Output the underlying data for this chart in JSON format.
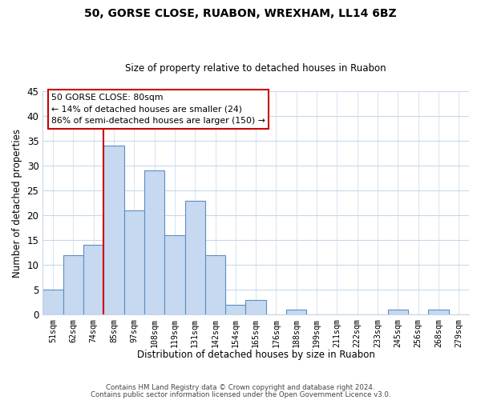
{
  "title": "50, GORSE CLOSE, RUABON, WREXHAM, LL14 6BZ",
  "subtitle": "Size of property relative to detached houses in Ruabon",
  "xlabel": "Distribution of detached houses by size in Ruabon",
  "ylabel": "Number of detached properties",
  "bar_labels": [
    "51sqm",
    "62sqm",
    "74sqm",
    "85sqm",
    "97sqm",
    "108sqm",
    "119sqm",
    "131sqm",
    "142sqm",
    "154sqm",
    "165sqm",
    "176sqm",
    "188sqm",
    "199sqm",
    "211sqm",
    "222sqm",
    "233sqm",
    "245sqm",
    "256sqm",
    "268sqm",
    "279sqm"
  ],
  "bar_values": [
    5,
    12,
    14,
    34,
    21,
    29,
    16,
    23,
    12,
    2,
    3,
    0,
    1,
    0,
    0,
    0,
    0,
    1,
    0,
    1,
    0
  ],
  "bar_color": "#c6d9f0",
  "bar_edge_color": "#5a8fc2",
  "vline_x": 3.0,
  "vline_color": "#cc0000",
  "ylim": [
    0,
    45
  ],
  "yticks": [
    0,
    5,
    10,
    15,
    20,
    25,
    30,
    35,
    40,
    45
  ],
  "annotation_title": "50 GORSE CLOSE: 80sqm",
  "annotation_line1": "← 14% of detached houses are smaller (24)",
  "annotation_line2": "86% of semi-detached houses are larger (150) →",
  "footer_line1": "Contains HM Land Registry data © Crown copyright and database right 2024.",
  "footer_line2": "Contains public sector information licensed under the Open Government Licence v3.0.",
  "background_color": "#ffffff",
  "grid_color": "#c8d8ec"
}
